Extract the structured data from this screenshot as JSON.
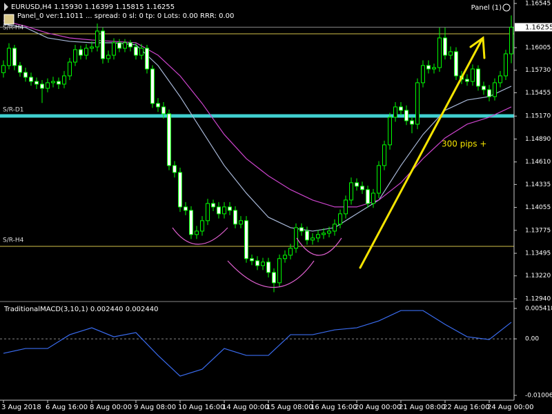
{
  "chart_data": [
    {
      "type": "candlestick",
      "title": "EURUSD,H4  1.15930 1.16399 1.15815 1.16255",
      "subtitle": "Panel_0 ver:1.1011 ... spread: 0   sl: 0   tp: 0   Lots: 0.00   RRR: 0.00",
      "panel": "Panel (1)",
      "annotation": "300 pips +",
      "up_color": "#000000",
      "down_color": "#ffffff",
      "wick_color": "#00ff00",
      "open": [
        1.157,
        1.15787,
        1.15998,
        1.15787,
        1.15703,
        1.15644,
        1.15593,
        1.1556,
        1.15509,
        1.15577,
        1.15593,
        1.1556,
        1.15661,
        1.15829,
        1.15981,
        1.15913,
        1.15998,
        1.16014,
        1.16208,
        1.15871,
        1.15913,
        1.16065,
        1.15998,
        1.16065,
        1.16014,
        1.15913,
        1.15998,
        1.15745,
        1.15324,
        1.15282,
        1.15198,
        1.14566,
        1.14482,
        1.14061,
        1.14019,
        1.13724,
        1.13766,
        1.13893,
        1.14103,
        1.14061,
        1.13977,
        1.14061,
        1.14019,
        1.13851,
        1.13893,
        1.1343,
        1.13404,
        1.13345,
        1.13388,
        1.13261,
        1.13135,
        1.1343,
        1.13472,
        1.13556,
        1.13808,
        1.13766,
        1.13657,
        1.13682,
        1.13724,
        1.13741,
        1.13766,
        1.13851,
        1.13977,
        1.14145,
        1.14356,
        1.14314,
        1.14272,
        1.14103,
        1.14229,
        1.14566,
        1.14819,
        1.15156,
        1.15282,
        1.1524,
        1.15113,
        1.15071,
        1.15577,
        1.15787,
        1.15745,
        1.15762,
        1.16124,
        1.15913,
        1.15956,
        1.15661,
        1.15619,
        1.15593,
        1.15745,
        1.15535,
        1.15492,
        1.15408,
        1.15577,
        1.15661,
        1.1593
      ],
      "high": [
        1.1585,
        1.1606,
        1.1604,
        1.1583,
        1.1576,
        1.157,
        1.1564,
        1.1561,
        1.1563,
        1.1565,
        1.1564,
        1.1572,
        1.1588,
        1.1604,
        1.1603,
        1.1605,
        1.1608,
        1.163,
        1.1625,
        1.1597,
        1.1612,
        1.1611,
        1.1611,
        1.161,
        1.1606,
        1.1605,
        1.1604,
        1.1579,
        1.1539,
        1.1534,
        1.1525,
        1.1462,
        1.1454,
        1.1412,
        1.1407,
        1.1383,
        1.1395,
        1.1416,
        1.1415,
        1.1412,
        1.1412,
        1.1412,
        1.1407,
        1.1395,
        1.1395,
        1.1348,
        1.1346,
        1.1344,
        1.1344,
        1.1331,
        1.1348,
        1.1353,
        1.1361,
        1.1386,
        1.1386,
        1.1382,
        1.1374,
        1.1378,
        1.138,
        1.1382,
        1.1391,
        1.1403,
        1.142,
        1.1442,
        1.1441,
        1.1437,
        1.1432,
        1.1428,
        1.1462,
        1.1487,
        1.1521,
        1.1534,
        1.1534,
        1.153,
        1.1516,
        1.1563,
        1.1585,
        1.1585,
        1.1581,
        1.1625,
        1.1625,
        1.1602,
        1.1601,
        1.1572,
        1.1568,
        1.158,
        1.1579,
        1.1559,
        1.1555,
        1.1563,
        1.1572,
        1.1598,
        1.16399
      ],
      "low": [
        1.1564,
        1.1574,
        1.1573,
        1.1565,
        1.1559,
        1.1554,
        1.155,
        1.1533,
        1.1546,
        1.1552,
        1.155,
        1.1551,
        1.1561,
        1.1578,
        1.1586,
        1.1586,
        1.1595,
        1.1596,
        1.1581,
        1.1582,
        1.1586,
        1.1595,
        1.1595,
        1.1596,
        1.1586,
        1.1586,
        1.1569,
        1.1527,
        1.1522,
        1.1514,
        1.1451,
        1.1442,
        1.14,
        1.1396,
        1.1367,
        1.1367,
        1.1371,
        1.1384,
        1.1401,
        1.1392,
        1.1392,
        1.1396,
        1.138,
        1.138,
        1.1338,
        1.1335,
        1.1329,
        1.1329,
        1.132,
        1.1302,
        1.1308,
        1.1338,
        1.1342,
        1.135,
        1.1371,
        1.136,
        1.136,
        1.1363,
        1.1367,
        1.1369,
        1.1371,
        1.138,
        1.1392,
        1.1409,
        1.1426,
        1.1422,
        1.1405,
        1.1405,
        1.1417,
        1.1451,
        1.1476,
        1.151,
        1.1518,
        1.1506,
        1.1496,
        1.1501,
        1.1552,
        1.1569,
        1.1569,
        1.1571,
        1.1586,
        1.1586,
        1.1561,
        1.1556,
        1.1554,
        1.1554,
        1.1548,
        1.1543,
        1.1535,
        1.1536,
        1.1552,
        1.1561,
        1.15815
      ],
      "close": [
        1.15787,
        1.15998,
        1.15787,
        1.15703,
        1.15644,
        1.15593,
        1.1556,
        1.15509,
        1.15577,
        1.15593,
        1.1556,
        1.15661,
        1.15829,
        1.15981,
        1.15913,
        1.15998,
        1.16014,
        1.16208,
        1.15871,
        1.15913,
        1.16065,
        1.15998,
        1.16065,
        1.16014,
        1.15913,
        1.15998,
        1.15745,
        1.15324,
        1.15282,
        1.15198,
        1.14566,
        1.14482,
        1.14061,
        1.14019,
        1.13724,
        1.13766,
        1.13893,
        1.14103,
        1.14061,
        1.13977,
        1.14061,
        1.14019,
        1.13851,
        1.13893,
        1.1343,
        1.13404,
        1.13345,
        1.13388,
        1.13261,
        1.13135,
        1.1343,
        1.13472,
        1.13556,
        1.13808,
        1.13766,
        1.13657,
        1.13682,
        1.13724,
        1.13741,
        1.13766,
        1.13851,
        1.13977,
        1.14145,
        1.14356,
        1.14314,
        1.14272,
        1.14103,
        1.14229,
        1.14566,
        1.14819,
        1.15156,
        1.15282,
        1.1524,
        1.15113,
        1.15071,
        1.15577,
        1.15787,
        1.15745,
        1.15762,
        1.16124,
        1.15913,
        1.15956,
        1.15661,
        1.15619,
        1.15593,
        1.15745,
        1.15535,
        1.15492,
        1.15408,
        1.15577,
        1.15661,
        1.1593,
        1.16255
      ],
      "series": [
        {
          "color": "#a8b8d8",
          "x": [
            0,
            4,
            8,
            12,
            16,
            20,
            24,
            28,
            32,
            36,
            40,
            44,
            48,
            52,
            56,
            60,
            64,
            68,
            72,
            76,
            80,
            84,
            88,
            92
          ],
          "values": [
            1.16292,
            1.1625,
            1.16124,
            1.16082,
            1.16065,
            1.16065,
            1.1604,
            1.15787,
            1.15408,
            1.14987,
            1.14566,
            1.14229,
            1.13935,
            1.13808,
            1.13766,
            1.13808,
            1.13977,
            1.14145,
            1.14566,
            1.14945,
            1.1524,
            1.15366,
            1.15408,
            1.15535
          ]
        },
        {
          "color": "#cc44cc",
          "x": [
            0,
            4,
            8,
            12,
            16,
            20,
            24,
            28,
            32,
            36,
            40,
            44,
            48,
            52,
            56,
            60,
            64,
            68,
            72,
            76,
            80,
            84,
            88,
            92
          ],
          "values": [
            1.16334,
            1.16267,
            1.16183,
            1.16124,
            1.16099,
            1.16082,
            1.16065,
            1.15913,
            1.15661,
            1.15324,
            1.14945,
            1.1465,
            1.1444,
            1.14272,
            1.14145,
            1.14061,
            1.14061,
            1.14145,
            1.14356,
            1.1465,
            1.14903,
            1.15071,
            1.15156,
            1.15282
          ]
        }
      ],
      "levels": [
        {
          "label": "S/R-H4",
          "value": 1.16174,
          "color": "#d4c24a",
          "width": 1
        },
        {
          "label": "S/R-D1",
          "value": 1.15172,
          "color": "#40d0d0",
          "width": 5
        },
        {
          "label": "S/R-H4",
          "value": 1.1358,
          "color": "#d4c24a",
          "width": 1
        }
      ],
      "ylim": [
        1.12923,
        1.16587
      ],
      "yticks": [
        1.16545,
        1.16005,
        {
          "value": 1.1573,
          "label": "1.15730"
        },
        1.15455,
        {
          "value": 1.1517,
          "label": "1.15170"
        },
        {
          "value": 1.1489,
          "label": "1.14890"
        },
        {
          "value": 1.1461,
          "label": "1.14610"
        },
        1.14335,
        1.14055,
        1.13775,
        1.13495,
        {
          "value": 1.1322,
          "label": "1.13220"
        },
        {
          "value": 1.1294,
          "label": "1.12940"
        }
      ],
      "xticks": [
        {
          "value": 0,
          "label": "3 Aug 2018"
        },
        {
          "value": 8,
          "label": "6 Aug 16:00"
        },
        {
          "value": 16,
          "label": "8 Aug 00:00"
        },
        {
          "value": 24,
          "label": "9 Aug 08:00"
        },
        {
          "value": 32,
          "label": "10 Aug 16:00"
        },
        {
          "value": 40,
          "label": "14 Aug 00:00"
        },
        {
          "value": 48,
          "label": "15 Aug 08:00"
        },
        {
          "value": 56,
          "label": "16 Aug 16:00"
        },
        {
          "value": 64,
          "label": "20 Aug 00:00"
        },
        {
          "value": 72,
          "label": "21 Aug 08:00"
        },
        {
          "value": 80,
          "label": "22 Aug 16:00"
        },
        {
          "value": 88,
          "label": "24 Aug 00:00"
        }
      ]
    },
    {
      "type": "line",
      "title": "TraditionalMACD(3,10,1) 0.002440 0.002440",
      "series": [
        {
          "color": "#3a6cf0",
          "x": [
            0,
            4,
            8,
            12,
            16,
            20,
            24,
            28,
            32,
            36,
            40,
            44,
            48,
            52,
            56,
            60,
            64,
            68,
            72,
            76,
            80,
            84,
            88,
            92
          ],
          "values": [
            -0.00258,
            -0.00172,
            -0.00172,
            0.00074,
            0.00197,
            0.00037,
            0.00111,
            -0.00295,
            -0.00664,
            -0.00541,
            -0.00172,
            -0.00295,
            -0.00295,
            0.00074,
            0.00074,
            0.0016,
            0.00197,
            0.0032,
            0.00504,
            0.00504,
            0.00258,
            0.00037,
            -0.00012,
            0.00295
          ]
        }
      ],
      "ylim": [
        -0.01093,
        0.00628
      ],
      "yticks": [
        0.005418,
        {
          "value": 0,
          "label": "0.00"
        },
        -0.010066
      ]
    }
  ]
}
